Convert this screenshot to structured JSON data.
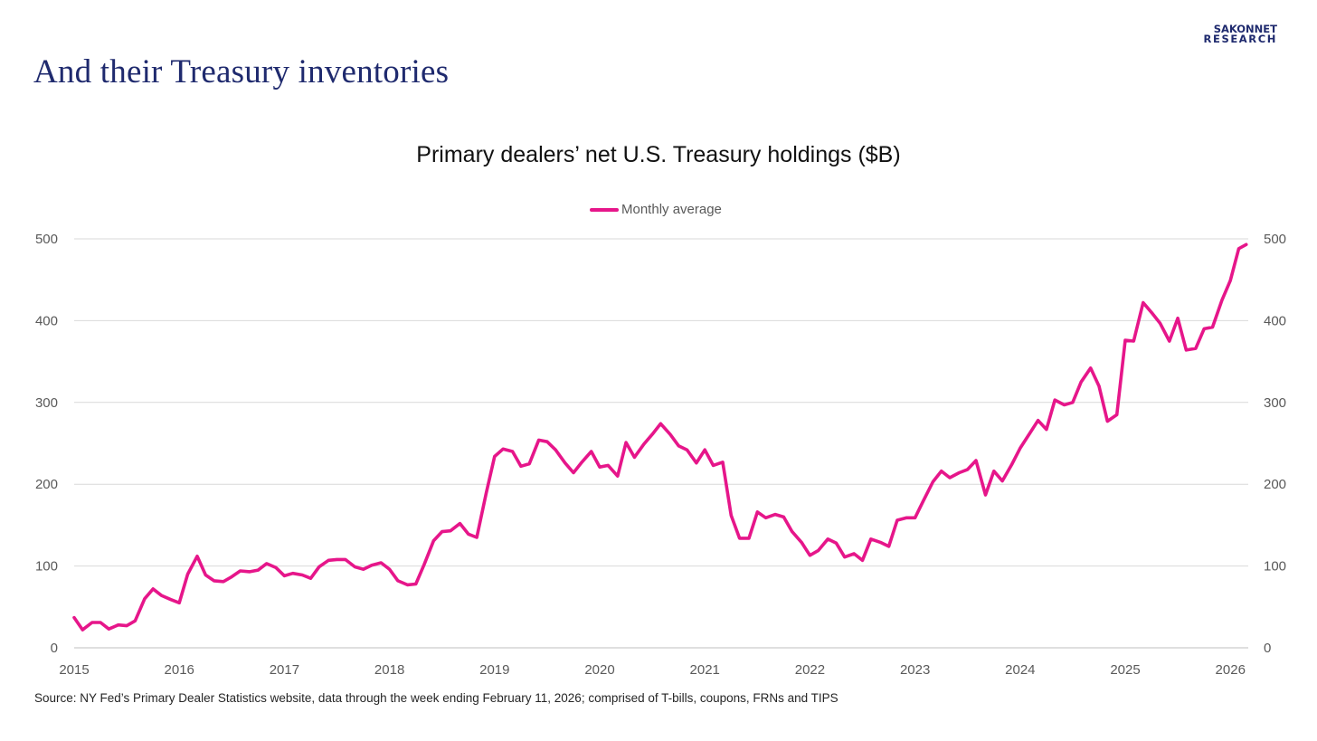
{
  "slide": {
    "title": "And their Treasury inventories",
    "logo_line1": "SAKONNET",
    "logo_line2": "RESEARCH",
    "source": "Source: NY Fed’s Primary Dealer Statistics website, data through the week ending February 11, 2026; comprised of T-bills, coupons, FRNs and TIPS"
  },
  "colors": {
    "series": "#e6168a",
    "title": "#1f2a6e",
    "grid": "#d9d9d9",
    "tick": "#595959"
  },
  "chart_data": {
    "type": "line",
    "title": "Primary dealers’ net U.S. Treasury holdings ($B)",
    "xlabel": "",
    "ylabel": "",
    "ylim": [
      0,
      500
    ],
    "yticks": [
      0,
      100,
      200,
      300,
      400,
      500
    ],
    "xlim": [
      2015,
      2026.17
    ],
    "xticks": [
      "2015",
      "2016",
      "2017",
      "2018",
      "2019",
      "2020",
      "2021",
      "2022",
      "2023",
      "2024",
      "2025",
      "2026"
    ],
    "secondary_y_axis": true,
    "grid": true,
    "legend_position": "top-center",
    "series": [
      {
        "name": "Monthly average",
        "x": [
          2015.0,
          2015.08,
          2015.17,
          2015.25,
          2015.33,
          2015.42,
          2015.5,
          2015.58,
          2015.67,
          2015.75,
          2015.83,
          2015.92,
          2016.0,
          2016.08,
          2016.17,
          2016.25,
          2016.33,
          2016.42,
          2016.5,
          2016.58,
          2016.67,
          2016.75,
          2016.83,
          2016.92,
          2017.0,
          2017.08,
          2017.17,
          2017.25,
          2017.33,
          2017.42,
          2017.5,
          2017.58,
          2017.67,
          2017.75,
          2017.83,
          2017.92,
          2018.0,
          2018.08,
          2018.17,
          2018.25,
          2018.33,
          2018.42,
          2018.5,
          2018.58,
          2018.67,
          2018.75,
          2018.83,
          2018.92,
          2019.0,
          2019.08,
          2019.17,
          2019.25,
          2019.33,
          2019.42,
          2019.5,
          2019.58,
          2019.67,
          2019.75,
          2019.83,
          2019.92,
          2020.0,
          2020.08,
          2020.17,
          2020.25,
          2020.33,
          2020.42,
          2020.5,
          2020.58,
          2020.67,
          2020.75,
          2020.83,
          2020.92,
          2021.0,
          2021.08,
          2021.17,
          2021.25,
          2021.33,
          2021.42,
          2021.5,
          2021.58,
          2021.67,
          2021.75,
          2021.83,
          2021.92,
          2022.0,
          2022.08,
          2022.17,
          2022.25,
          2022.33,
          2022.42,
          2022.5,
          2022.58,
          2022.67,
          2022.75,
          2022.83,
          2022.92,
          2023.0,
          2023.08,
          2023.17,
          2023.25,
          2023.33,
          2023.42,
          2023.5,
          2023.58,
          2023.67,
          2023.75,
          2023.83,
          2023.92,
          2024.0,
          2024.08,
          2024.17,
          2024.25,
          2024.33,
          2024.42,
          2024.5,
          2024.58,
          2024.67,
          2024.75,
          2024.83,
          2024.92,
          2025.0,
          2025.08,
          2025.17,
          2025.25,
          2025.33,
          2025.42,
          2025.5,
          2025.58,
          2025.67,
          2025.75,
          2025.83,
          2025.92,
          2026.0,
          2026.08,
          2026.15
        ],
        "values": [
          37,
          22,
          31,
          31,
          23,
          28,
          27,
          33,
          60,
          72,
          64,
          59,
          55,
          90,
          112,
          89,
          82,
          81,
          87,
          94,
          93,
          95,
          103,
          98,
          88,
          91,
          89,
          85,
          99,
          107,
          108,
          108,
          99,
          96,
          101,
          104,
          96,
          82,
          77,
          78,
          102,
          131,
          142,
          143,
          152,
          139,
          135,
          189,
          234,
          243,
          240,
          222,
          225,
          254,
          252,
          242,
          226,
          214,
          227,
          240,
          221,
          223,
          210,
          251,
          233,
          249,
          261,
          274,
          261,
          247,
          242,
          226,
          242,
          223,
          227,
          162,
          134,
          134,
          166,
          159,
          163,
          160,
          142,
          129,
          113,
          119,
          133,
          128,
          111,
          115,
          107,
          133,
          129,
          124,
          156,
          159,
          159,
          180,
          203,
          216,
          208,
          214,
          218,
          229,
          187,
          216,
          204,
          224,
          244,
          260,
          278,
          267,
          303,
          297,
          300,
          325,
          342,
          320,
          277,
          285,
          376,
          375,
          422,
          410,
          397,
          375,
          403,
          364,
          366,
          390,
          392,
          425,
          449,
          488,
          493
        ]
      }
    ]
  }
}
